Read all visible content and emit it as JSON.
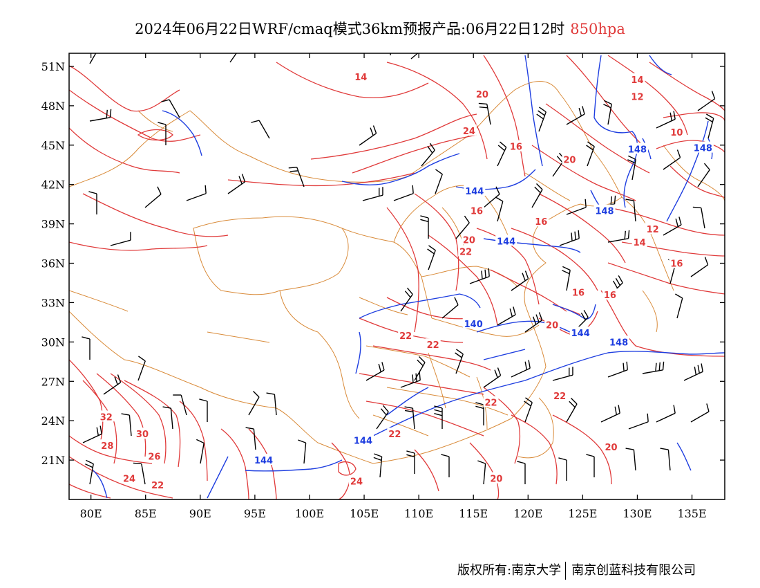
{
  "title": {
    "main": "2024年06月22日WRF/cmaq模式36km预报产品:06月22日12时",
    "level": "850hpa"
  },
  "axes": {
    "lon_labels": [
      "80E",
      "85E",
      "90E",
      "95E",
      "100E",
      "105E",
      "110E",
      "115E",
      "120E",
      "125E",
      "130E",
      "135E"
    ],
    "lat_labels": [
      "51N",
      "48N",
      "45N",
      "42N",
      "39N",
      "36N",
      "33N",
      "30N",
      "27N",
      "24N",
      "21N"
    ]
  },
  "contours": {
    "height_label_color": "#1e3ee0",
    "temp_label_color": "#e03a3a",
    "height_labels": [
      {
        "text": "144",
        "lon": 115.1,
        "lat": 41.5
      },
      {
        "text": "144",
        "lon": 118.0,
        "lat": 37.7
      },
      {
        "text": "140",
        "lon": 115.0,
        "lat": 31.4
      },
      {
        "text": "144",
        "lon": 124.8,
        "lat": 30.7
      },
      {
        "text": "148",
        "lon": 128.3,
        "lat": 30.0
      },
      {
        "text": "148",
        "lon": 130.0,
        "lat": 44.7
      },
      {
        "text": "148",
        "lon": 136.0,
        "lat": 44.8
      },
      {
        "text": "148",
        "lon": 127.0,
        "lat": 40.0
      },
      {
        "text": "144",
        "lon": 95.8,
        "lat": 21.0
      },
      {
        "text": "144",
        "lon": 104.9,
        "lat": 22.5
      }
    ],
    "temp_labels": [
      {
        "text": "14",
        "lon": 104.7,
        "lat": 50.2
      },
      {
        "text": "20",
        "lon": 115.8,
        "lat": 48.9
      },
      {
        "text": "24",
        "lon": 114.6,
        "lat": 46.1
      },
      {
        "text": "16",
        "lon": 118.9,
        "lat": 44.9
      },
      {
        "text": "20",
        "lon": 123.8,
        "lat": 43.9
      },
      {
        "text": "14",
        "lon": 130.0,
        "lat": 50.0
      },
      {
        "text": "12",
        "lon": 130.0,
        "lat": 48.7
      },
      {
        "text": "10",
        "lon": 133.6,
        "lat": 46.0
      },
      {
        "text": "12",
        "lon": 131.4,
        "lat": 38.6
      },
      {
        "text": "14",
        "lon": 130.2,
        "lat": 37.6
      },
      {
        "text": "16",
        "lon": 133.6,
        "lat": 36.0
      },
      {
        "text": "16",
        "lon": 115.3,
        "lat": 40.0
      },
      {
        "text": "16",
        "lon": 121.2,
        "lat": 39.2
      },
      {
        "text": "20",
        "lon": 114.6,
        "lat": 37.8
      },
      {
        "text": "22",
        "lon": 114.3,
        "lat": 36.9
      },
      {
        "text": "16",
        "lon": 124.6,
        "lat": 33.8
      },
      {
        "text": "16",
        "lon": 127.5,
        "lat": 33.6
      },
      {
        "text": "20",
        "lon": 122.2,
        "lat": 31.3
      },
      {
        "text": "22",
        "lon": 108.8,
        "lat": 30.5
      },
      {
        "text": "22",
        "lon": 111.3,
        "lat": 29.8
      },
      {
        "text": "22",
        "lon": 116.6,
        "lat": 25.4
      },
      {
        "text": "22",
        "lon": 122.9,
        "lat": 25.9
      },
      {
        "text": "22",
        "lon": 107.8,
        "lat": 23.0
      },
      {
        "text": "32",
        "lon": 81.4,
        "lat": 24.3
      },
      {
        "text": "30",
        "lon": 84.7,
        "lat": 23.0
      },
      {
        "text": "28",
        "lon": 81.5,
        "lat": 22.1
      },
      {
        "text": "26",
        "lon": 85.8,
        "lat": 21.3
      },
      {
        "text": "24",
        "lon": 83.5,
        "lat": 19.6
      },
      {
        "text": "22",
        "lon": 86.1,
        "lat": 19.1
      },
      {
        "text": "24",
        "lon": 104.3,
        "lat": 19.4
      },
      {
        "text": "20",
        "lon": 117.1,
        "lat": 19.6
      },
      {
        "text": "20",
        "lon": 127.6,
        "lat": 22.0
      }
    ]
  },
  "footer": {
    "copyright": "版权所有:南京大学",
    "company": "南京创蓝科技有限公司"
  }
}
